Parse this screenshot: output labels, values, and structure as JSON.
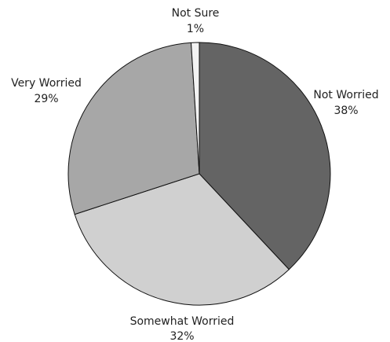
{
  "chart_data": {
    "type": "pie",
    "title": "",
    "slices": [
      {
        "label": "Not Worried",
        "value": 38,
        "display": "38%",
        "color": "#646464"
      },
      {
        "label": "Somewhat Worried",
        "value": 32,
        "display": "32%",
        "color": "#d0d0d0"
      },
      {
        "label": "Very Worried",
        "value": 29,
        "display": "29%",
        "color": "#a7a7a7"
      },
      {
        "label": "Not Sure",
        "value": 1,
        "display": "1%",
        "color": "#f3f3f3"
      }
    ],
    "start_angle": "12 o'clock",
    "direction": "clockwise",
    "legend": "none",
    "stroke_color": "#111111"
  }
}
